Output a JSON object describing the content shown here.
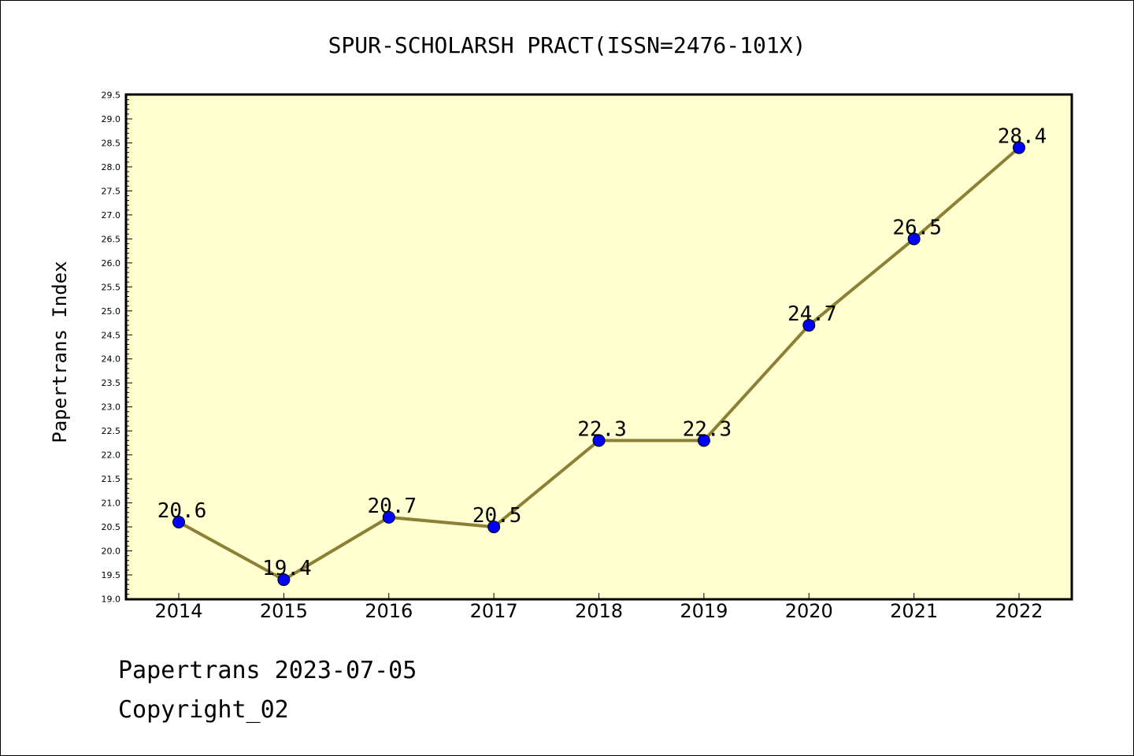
{
  "chart_data": {
    "type": "line",
    "title": "SPUR-SCHOLARSH PRACT(ISSN=2476-101X)",
    "xlabel": "",
    "ylabel": "Papertrans Index",
    "categories": [
      "2014",
      "2015",
      "2016",
      "2017",
      "2018",
      "2019",
      "2020",
      "2021",
      "2022"
    ],
    "values": [
      20.6,
      19.4,
      20.7,
      20.5,
      22.3,
      22.3,
      24.7,
      26.5,
      28.4
    ],
    "data_labels": [
      "20.6",
      "19.4",
      "20.7",
      "20.5",
      "22.3",
      "22.3",
      "24.7",
      "26.5",
      "28.4"
    ],
    "ylim": [
      19.0,
      29.5
    ],
    "ytick_labels": [
      "19.0",
      "19.5",
      "20.0",
      "20.5",
      "21.0",
      "21.5",
      "22.0",
      "22.5",
      "23.0",
      "23.5",
      "24.0",
      "24.5",
      "25.0",
      "25.5",
      "26.0",
      "26.5",
      "27.0",
      "27.5",
      "28.0",
      "28.5",
      "29.0",
      "29.5"
    ],
    "grid": false,
    "colors": {
      "plot_background": "#ffffd0",
      "line": "#8b8035",
      "marker": "#0000ff"
    }
  },
  "footer": {
    "line1": "Papertrans 2023-07-05",
    "line2": "Copyright_02"
  }
}
